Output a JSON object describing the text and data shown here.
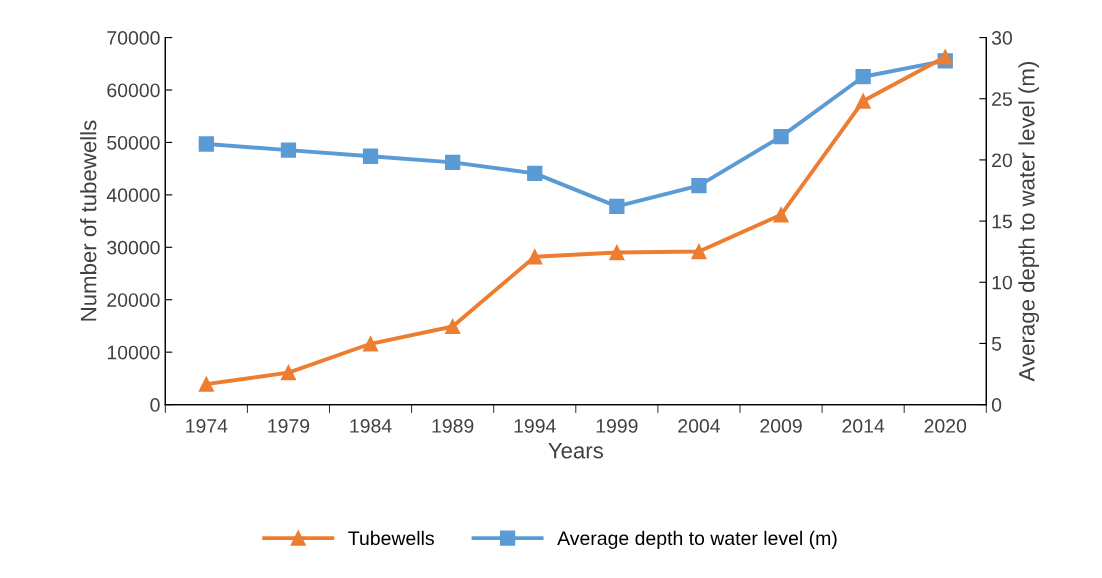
{
  "chart_data": {
    "type": "line",
    "xlabel": "Years",
    "ylabel": "Number of tubewells",
    "y2label": "Average depth to water level (m)",
    "categories": [
      "1974",
      "1979",
      "1984",
      "1989",
      "1994",
      "1999",
      "2004",
      "2009",
      "2014",
      "2020"
    ],
    "series": [
      {
        "name": "Tubewells",
        "color": "#ed7d31",
        "marker": "triangle",
        "values": [
          3900,
          6100,
          11600,
          14900,
          28200,
          29000,
          29200,
          36200,
          57900,
          66300
        ]
      },
      {
        "name": "Average depth to water level (m)",
        "color": "#5b9bd5",
        "marker": "square",
        "axis": "y2",
        "values": [
          21.3,
          20.8,
          20.3,
          19.8,
          18.9,
          16.2,
          17.9,
          21.9,
          26.8,
          28.1
        ]
      }
    ],
    "ylim": [
      0,
      70000
    ],
    "yticks": [
      0,
      10000,
      20000,
      30000,
      40000,
      50000,
      60000,
      70000
    ],
    "y2lim": [
      0,
      30
    ],
    "y2ticks": [
      0,
      5,
      10,
      15,
      20,
      25,
      30
    ],
    "grid": false,
    "legend": "bottom",
    "line_style": "solid"
  }
}
